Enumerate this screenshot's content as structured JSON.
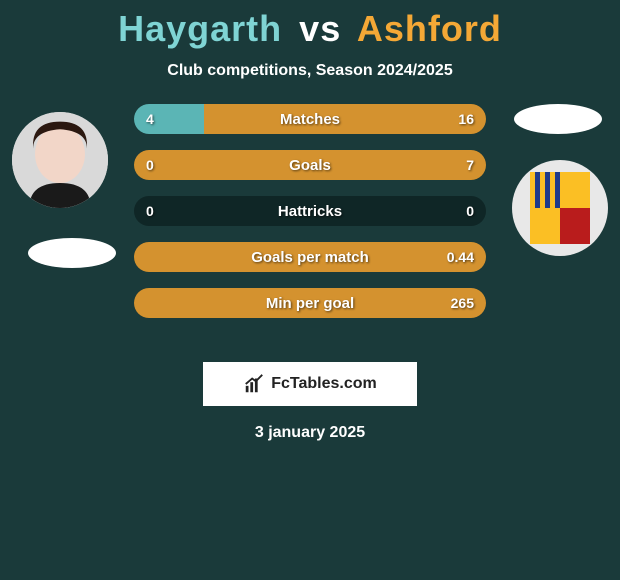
{
  "title": {
    "player1": "Haygarth",
    "vs": "vs",
    "player2": "Ashford",
    "player1_color": "#7fd4d4",
    "vs_color": "#ffffff",
    "player2_color": "#f4a836"
  },
  "subtitle": "Club competitions, Season 2024/2025",
  "colors": {
    "background": "#1a3a3a",
    "left_fill": "#5bb5b5",
    "right_fill": "#d4922f",
    "bar_base": "#0f2626",
    "text": "#ffffff"
  },
  "bars": [
    {
      "label": "Matches",
      "left_val": "4",
      "right_val": "16",
      "left_pct": 20,
      "right_pct": 80
    },
    {
      "label": "Goals",
      "left_val": "0",
      "right_val": "7",
      "left_pct": 0,
      "right_pct": 100
    },
    {
      "label": "Hattricks",
      "left_val": "0",
      "right_val": "0",
      "left_pct": 0,
      "right_pct": 0
    },
    {
      "label": "Goals per match",
      "left_val": "",
      "right_val": "0.44",
      "left_pct": 0,
      "right_pct": 100
    },
    {
      "label": "Min per goal",
      "left_val": "",
      "right_val": "265",
      "left_pct": 0,
      "right_pct": 100
    }
  ],
  "logo_text": "FcTables.com",
  "date": "3 january 2025"
}
